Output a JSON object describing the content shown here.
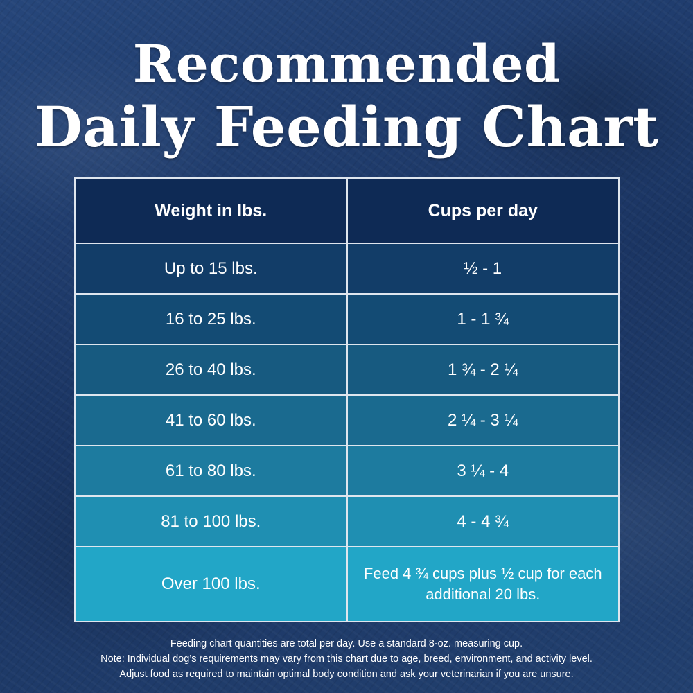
{
  "title": {
    "line1": "Recommended",
    "line2": "Daily Feeding Chart"
  },
  "table": {
    "headers": [
      "Weight in lbs.",
      "Cups per day"
    ],
    "rows": [
      {
        "weight": "Up to 15 lbs.",
        "cups": "½ - 1",
        "color": "#123d68"
      },
      {
        "weight": "16 to 25 lbs.",
        "cups": "1 - 1 ¾",
        "color": "#134b74"
      },
      {
        "weight": "26 to 40 lbs.",
        "cups": "1 ¾ - 2 ¼",
        "color": "#175a80"
      },
      {
        "weight": "41 to 60 lbs.",
        "cups": "2 ¼ - 3 ¼",
        "color": "#1a6a8f"
      },
      {
        "weight": "61 to 80 lbs.",
        "cups": "3 ¼ - 4",
        "color": "#1d7b9f"
      },
      {
        "weight": "81 to 100 lbs.",
        "cups": "4 - 4 ¾",
        "color": "#1f8fb2"
      },
      {
        "weight": "Over 100 lbs.",
        "cups": "Feed 4 ¾ cups plus ½ cup for each additional 20 lbs.",
        "color": "#22a6c7"
      }
    ],
    "header_color": "#0e2a55"
  },
  "footer": {
    "line1": "Feeding chart quantities are total per day. Use a standard 8-oz. measuring cup.",
    "line2": "Note: Individual dog’s requirements may vary from this chart due to age, breed, environment, and activity level.",
    "line3": "Adjust food as required to maintain optimal body condition and ask your veterinarian if you are unsure."
  }
}
